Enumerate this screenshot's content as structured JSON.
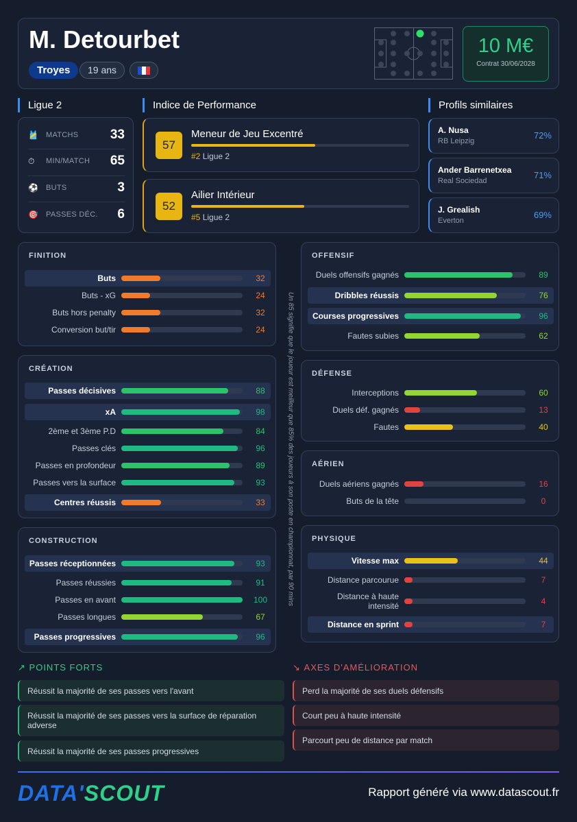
{
  "header": {
    "player_name": "M. Detourbet",
    "team": "Troyes",
    "age": "19 ans",
    "flag_icon": "france-flag-icon",
    "market_value": "10 M€",
    "contract": "Contrat 30/06/2028"
  },
  "league": {
    "title": "Ligue 2",
    "stats": [
      {
        "icon": "shirt-icon",
        "glyph": "🎽",
        "label": "MATCHS",
        "value": "33"
      },
      {
        "icon": "stopwatch-icon",
        "glyph": "⏱",
        "label": "MIN/MATCH",
        "value": "65"
      },
      {
        "icon": "soccer-ball-icon",
        "glyph": "⚽",
        "label": "BUTS",
        "value": "3"
      },
      {
        "icon": "target-icon",
        "glyph": "🎯",
        "label": "PASSES DÉC.",
        "value": "6"
      }
    ]
  },
  "performance": {
    "title": "Indice de Performance",
    "items": [
      {
        "score": "57",
        "role": "Meneur de Jeu Excentré",
        "rank": "#2",
        "league": "Ligue 2",
        "progress": 0.57
      },
      {
        "score": "52",
        "role": "Ailier Intérieur",
        "rank": "#5",
        "league": "Ligue 2",
        "progress": 0.52
      }
    ]
  },
  "similar": {
    "title": "Profils similaires",
    "items": [
      {
        "name": "A. Nusa",
        "club": "RB Leipzig",
        "pct": "72%"
      },
      {
        "name": "Ander Barrenetxea",
        "club": "Real Sociedad",
        "pct": "71%"
      },
      {
        "name": "J. Grealish",
        "club": "Everton",
        "pct": "69%"
      }
    ]
  },
  "colors": {
    "red": "#e0443f",
    "orange": "#f07b2a",
    "yellow": "#e8c21a",
    "lime": "#93d632",
    "green": "#2cc46a",
    "teal": "#1fba82"
  },
  "panels": {
    "finition": {
      "title": "FINITION",
      "rows": [
        {
          "label": "Buts",
          "value": 32,
          "highlight": true,
          "color": "orange"
        },
        {
          "label": "Buts - xG",
          "value": 24,
          "highlight": false,
          "color": "orange"
        },
        {
          "label": "Buts hors penalty",
          "value": 32,
          "highlight": false,
          "color": "orange"
        },
        {
          "label": "Conversion but/tir",
          "value": 24,
          "highlight": false,
          "color": "orange"
        }
      ]
    },
    "creation": {
      "title": "CRÉATION",
      "rows": [
        {
          "label": "Passes décisives",
          "value": 88,
          "highlight": true,
          "color": "green"
        },
        {
          "label": "xA",
          "value": 98,
          "highlight": true,
          "color": "teal"
        },
        {
          "label": "2ème et 3ème P.D",
          "value": 84,
          "highlight": false,
          "color": "green"
        },
        {
          "label": "Passes clés",
          "value": 96,
          "highlight": false,
          "color": "teal"
        },
        {
          "label": "Passes en profondeur",
          "value": 89,
          "highlight": false,
          "color": "green"
        },
        {
          "label": "Passes vers la surface",
          "value": 93,
          "highlight": false,
          "color": "teal"
        },
        {
          "label": "Centres réussis",
          "value": 33,
          "highlight": true,
          "color": "orange"
        }
      ]
    },
    "construction": {
      "title": "CONSTRUCTION",
      "rows": [
        {
          "label": "Passes réceptionnées",
          "value": 93,
          "highlight": true,
          "color": "teal"
        },
        {
          "label": "Passes réussies",
          "value": 91,
          "highlight": false,
          "color": "teal"
        },
        {
          "label": "Passes en avant",
          "value": 100,
          "highlight": false,
          "color": "teal"
        },
        {
          "label": "Passes longues",
          "value": 67,
          "highlight": false,
          "color": "lime"
        },
        {
          "label": "Passes progressives",
          "value": 96,
          "highlight": true,
          "color": "teal"
        }
      ]
    },
    "offensif": {
      "title": "OFFENSIF",
      "rows": [
        {
          "label": "Duels offensifs gagnés",
          "value": 89,
          "highlight": false,
          "color": "green"
        },
        {
          "label": "Dribbles réussis",
          "value": 76,
          "highlight": true,
          "color": "lime"
        },
        {
          "label": "Courses progressives",
          "value": 96,
          "highlight": true,
          "color": "teal"
        },
        {
          "label": "Fautes subies",
          "value": 62,
          "highlight": false,
          "color": "lime"
        }
      ]
    },
    "defense": {
      "title": "DÉFENSE",
      "rows": [
        {
          "label": "Interceptions",
          "value": 60,
          "highlight": false,
          "color": "lime"
        },
        {
          "label": "Duels déf. gagnés",
          "value": 13,
          "highlight": false,
          "color": "red"
        },
        {
          "label": "Fautes",
          "value": 40,
          "highlight": false,
          "color": "yellow"
        }
      ]
    },
    "aerien": {
      "title": "AÉRIEN",
      "rows": [
        {
          "label": "Duels aériens gagnés",
          "value": 16,
          "highlight": false,
          "color": "red"
        },
        {
          "label": "Buts de la tête",
          "value": 0,
          "highlight": false,
          "color": "red"
        }
      ]
    },
    "physique": {
      "title": "PHYSIQUE",
      "rows": [
        {
          "label": "Vitesse max",
          "value": 44,
          "highlight": true,
          "color": "yellow"
        },
        {
          "label": "Distance parcourue",
          "value": 7,
          "highlight": false,
          "color": "red"
        },
        {
          "label": "Distance à haute intensité",
          "value": 4,
          "highlight": false,
          "color": "red"
        },
        {
          "label": "Distance en sprint",
          "value": 7,
          "highlight": true,
          "color": "red"
        }
      ]
    }
  },
  "percentile_note": "Un 85 signifie que le joueur est meilleur que 85% des joueurs à son poste en championnat, par 90 mins",
  "strengths": {
    "title": "POINTS FORTS",
    "icon": "trend-up-icon",
    "items": [
      "Réussit la majorité de ses passes vers l'avant",
      "Réussit la majorité de ses passes vers la surface de réparation adverse",
      "Réussit la majorité de ses passes progressives"
    ]
  },
  "improvements": {
    "title": "AXES D'AMÉLIORATION",
    "icon": "trend-down-icon",
    "items": [
      "Perd la majorité de ses duels défensifs",
      "Court peu à haute intensité",
      "Parcourt peu de distance par match"
    ]
  },
  "footer": {
    "logo_part1": "DATA'",
    "logo_part2": "SCOUT",
    "text": "Rapport généré via www.datascout.fr"
  }
}
